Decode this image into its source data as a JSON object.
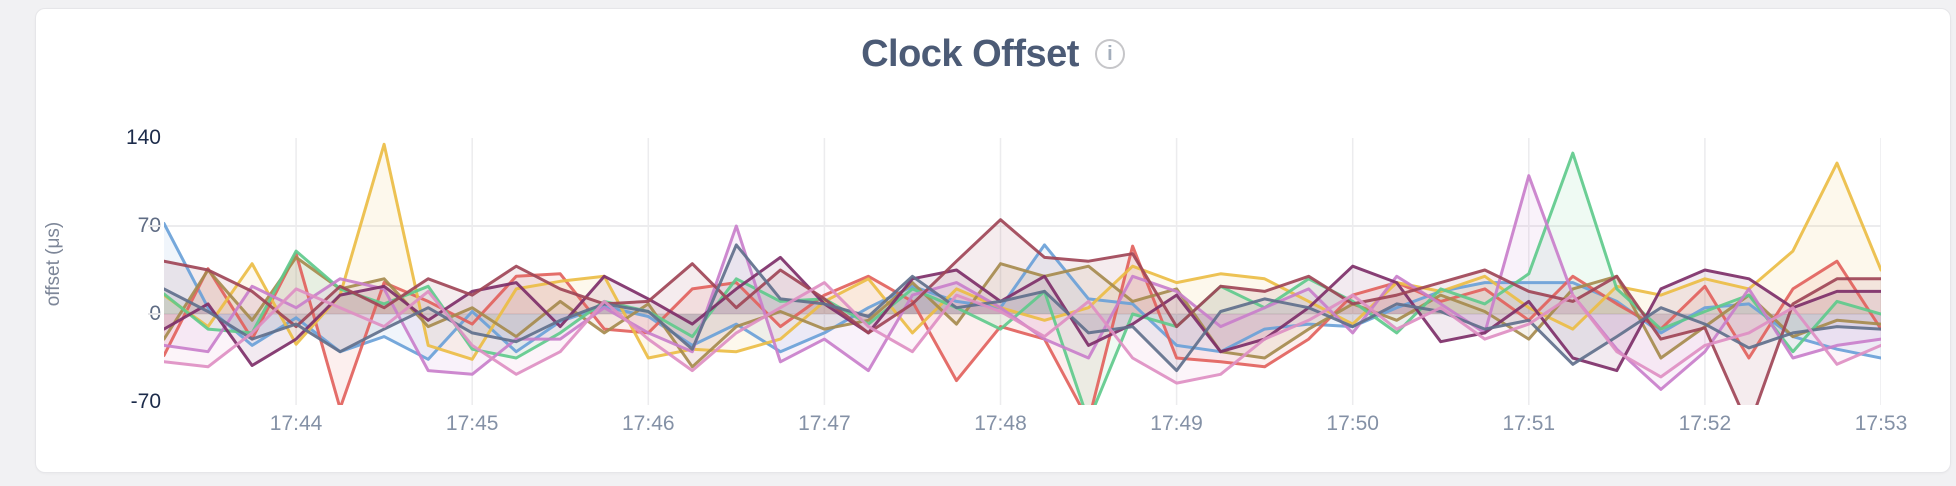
{
  "page": {
    "background": "#f1f1f3"
  },
  "card": {
    "background": "#ffffff",
    "title": "Clock Offset",
    "info_icon": "i",
    "title_color": "#4c5b76"
  },
  "chart_data": {
    "type": "line",
    "title": "Clock Offset",
    "ylabel": "offset (μs)",
    "xlabel": "",
    "ylim": [
      -70,
      140
    ],
    "grid": true,
    "legend": "none",
    "fill_to_zero": true,
    "fill_opacity": 0.1,
    "line_width": 3,
    "grid_color": "#ececee",
    "xtick_color": "#8491a6",
    "ytick_color_normal": "#5f6c84",
    "ytick_color_emphasis": "#1c2b4a",
    "yticks": [
      {
        "label": "140",
        "value": 140,
        "emphasis": true
      },
      {
        "label": "70",
        "value": 70,
        "emphasis": false
      },
      {
        "label": "0",
        "value": 0,
        "emphasis": false
      },
      {
        "label": "-70",
        "value": -70,
        "emphasis": true
      }
    ],
    "x_ticks": [
      {
        "label": "17:44",
        "index": 3
      },
      {
        "label": "17:45",
        "index": 7
      },
      {
        "label": "17:46",
        "index": 11
      },
      {
        "label": "17:47",
        "index": 15
      },
      {
        "label": "17:48",
        "index": 19
      },
      {
        "label": "17:49",
        "index": 23
      },
      {
        "label": "17:50",
        "index": 27
      },
      {
        "label": "17:51",
        "index": 31
      },
      {
        "label": "17:52",
        "index": 35
      },
      {
        "label": "17:53",
        "index": 39
      }
    ],
    "points_per_minute": 4,
    "series": [
      {
        "color": "#6AA1D8",
        "values": [
          72,
          5,
          -25,
          -3,
          -30,
          -18,
          -36,
          2,
          -30,
          -6,
          6,
          -2,
          -25,
          -8,
          -30,
          -15,
          5,
          22,
          10,
          5,
          55,
          12,
          8,
          -25,
          -30,
          -12,
          -8,
          -10,
          5,
          18,
          25,
          25,
          25,
          10,
          -15,
          5,
          8,
          -18,
          -28,
          -35
        ]
      },
      {
        "color": "#E2625D",
        "values": [
          -33,
          36,
          -20,
          48,
          -75,
          25,
          10,
          -8,
          30,
          32,
          -12,
          -15,
          20,
          25,
          -10,
          15,
          30,
          10,
          -53,
          -10,
          -20,
          -85,
          54,
          -35,
          -38,
          -42,
          -20,
          15,
          25,
          10,
          20,
          -5,
          30,
          8,
          -12,
          22,
          -35,
          20,
          42,
          -12
        ]
      },
      {
        "color": "#EBBD45",
        "values": [
          15,
          -10,
          40,
          -24,
          15,
          135,
          -25,
          -36,
          20,
          26,
          30,
          -35,
          -28,
          -30,
          -20,
          10,
          28,
          -15,
          20,
          5,
          -5,
          5,
          38,
          25,
          32,
          28,
          10,
          -8,
          25,
          18,
          30,
          5,
          -12,
          22,
          15,
          28,
          20,
          50,
          120,
          35
        ]
      },
      {
        "color": "#A68B4E",
        "values": [
          -20,
          35,
          -5,
          45,
          20,
          28,
          -10,
          5,
          -18,
          10,
          -15,
          8,
          -42,
          -10,
          2,
          -12,
          -5,
          25,
          -8,
          40,
          30,
          38,
          10,
          20,
          -30,
          -35,
          -12,
          8,
          -5,
          15,
          2,
          -20,
          20,
          30,
          -35,
          -10,
          15,
          -18,
          -5,
          -8
        ]
      },
      {
        "color": "#60CA8C",
        "values": [
          16,
          -12,
          -15,
          50,
          20,
          8,
          22,
          -28,
          -35,
          -15,
          10,
          2,
          -18,
          28,
          10,
          12,
          -8,
          20,
          5,
          -12,
          18,
          -85,
          0,
          -10,
          22,
          5,
          28,
          10,
          -15,
          20,
          8,
          32,
          128,
          20,
          -12,
          2,
          15,
          -30,
          10,
          0
        ]
      },
      {
        "color": "#C97FCB",
        "values": [
          -25,
          -30,
          22,
          5,
          28,
          20,
          -45,
          -48,
          -20,
          -20,
          5,
          -15,
          -30,
          70,
          -38,
          -20,
          -45,
          15,
          25,
          5,
          -20,
          -35,
          30,
          18,
          -10,
          5,
          20,
          -15,
          30,
          8,
          -15,
          110,
          15,
          -28,
          -60,
          -30,
          20,
          -35,
          -25,
          -20
        ]
      },
      {
        "color": "#7E2F69",
        "values": [
          -12,
          8,
          -41,
          -20,
          15,
          22,
          -5,
          18,
          25,
          -10,
          30,
          12,
          -8,
          20,
          45,
          8,
          -15,
          28,
          35,
          10,
          30,
          -25,
          -8,
          15,
          -30,
          -20,
          5,
          38,
          25,
          -22,
          -15,
          10,
          -35,
          -45,
          20,
          35,
          28,
          5,
          18,
          18
        ]
      },
      {
        "color": "#A04557",
        "values": [
          42,
          35,
          18,
          -10,
          22,
          5,
          28,
          15,
          38,
          20,
          8,
          10,
          40,
          5,
          35,
          12,
          -15,
          8,
          42,
          75,
          45,
          42,
          48,
          -10,
          22,
          18,
          30,
          8,
          15,
          25,
          35,
          18,
          10,
          30,
          -20,
          -11,
          -90,
          8,
          28,
          28
        ]
      },
      {
        "color": "#61708C",
        "values": [
          20,
          2,
          -20,
          -8,
          -30,
          -12,
          5,
          -15,
          -22,
          -5,
          8,
          2,
          -28,
          55,
          12,
          8,
          -2,
          30,
          5,
          10,
          18,
          -15,
          -10,
          -45,
          2,
          12,
          5,
          -10,
          8,
          2,
          -12,
          -5,
          -40,
          -18,
          5,
          -8,
          -27,
          -15,
          -10,
          -12
        ]
      },
      {
        "color": "#DE8FC3",
        "values": [
          -38,
          -42,
          -15,
          20,
          5,
          -10,
          18,
          -25,
          -48,
          -30,
          10,
          -20,
          -45,
          -15,
          5,
          25,
          -10,
          -30,
          15,
          2,
          -18,
          10,
          -35,
          -55,
          -48,
          -20,
          -5,
          15,
          -12,
          5,
          -20,
          -8,
          15,
          -30,
          -50,
          -25,
          -15,
          5,
          -40,
          -25
        ]
      }
    ]
  }
}
